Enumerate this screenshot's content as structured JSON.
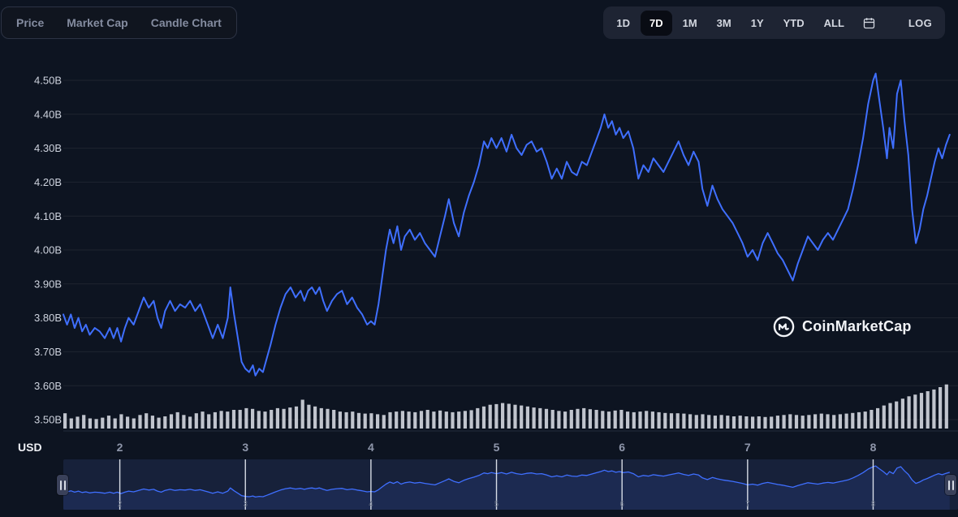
{
  "toolbar": {
    "chart_tabs": [
      {
        "label": "Price"
      },
      {
        "label": "Market Cap"
      },
      {
        "label": "Candle Chart"
      }
    ],
    "ranges": [
      {
        "label": "1D",
        "active": false
      },
      {
        "label": "7D",
        "active": true
      },
      {
        "label": "1M",
        "active": false
      },
      {
        "label": "3M",
        "active": false
      },
      {
        "label": "1Y",
        "active": false
      },
      {
        "label": "YTD",
        "active": false
      },
      {
        "label": "ALL",
        "active": false
      }
    ],
    "log_label": "LOG"
  },
  "watermark": {
    "text": "CoinMarketCap"
  },
  "axis": {
    "currency_label": "USD"
  },
  "colors": {
    "background": "#0d1421",
    "accent_blue": "#3f6fff",
    "grid": "rgba(255,255,255,0.07)",
    "volume_bar": "#d9dde5",
    "navigator_bg": "#17213a",
    "navigator_fill": "rgba(63,111,255,0.12)",
    "tick_line_white": "rgba(235,239,247,0.9)"
  },
  "chart_data": {
    "type": "line",
    "title": "Market Cap (7D)",
    "xlabel": "",
    "ylabel": "USD",
    "y_unit": "B",
    "x_domain": [
      1.55,
      8.65
    ],
    "y_domain": [
      3.5,
      4.5
    ],
    "x_ticks": [
      2,
      3,
      4,
      5,
      6,
      7,
      8
    ],
    "y_ticks": [
      {
        "value": 4.5,
        "label": "4.50B"
      },
      {
        "value": 4.4,
        "label": "4.40B"
      },
      {
        "value": 4.3,
        "label": "4.30B"
      },
      {
        "value": 4.2,
        "label": "4.20B"
      },
      {
        "value": 4.1,
        "label": "4.10B"
      },
      {
        "value": 4.0,
        "label": "4.00B"
      },
      {
        "value": 3.9,
        "label": "3.90B"
      },
      {
        "value": 3.8,
        "label": "3.80B"
      },
      {
        "value": 3.7,
        "label": "3.70B"
      },
      {
        "value": 3.6,
        "label": "3.60B"
      },
      {
        "value": 3.5,
        "label": "3.50B"
      }
    ],
    "series": [
      {
        "name": "Market Cap",
        "color": "#3f6fff",
        "points": [
          [
            1.55,
            3.81
          ],
          [
            1.58,
            3.78
          ],
          [
            1.61,
            3.81
          ],
          [
            1.64,
            3.77
          ],
          [
            1.67,
            3.8
          ],
          [
            1.7,
            3.76
          ],
          [
            1.73,
            3.78
          ],
          [
            1.76,
            3.75
          ],
          [
            1.8,
            3.77
          ],
          [
            1.84,
            3.76
          ],
          [
            1.88,
            3.74
          ],
          [
            1.92,
            3.77
          ],
          [
            1.95,
            3.74
          ],
          [
            1.98,
            3.77
          ],
          [
            2.01,
            3.73
          ],
          [
            2.04,
            3.77
          ],
          [
            2.07,
            3.8
          ],
          [
            2.11,
            3.78
          ],
          [
            2.15,
            3.82
          ],
          [
            2.19,
            3.86
          ],
          [
            2.23,
            3.83
          ],
          [
            2.27,
            3.85
          ],
          [
            2.3,
            3.8
          ],
          [
            2.33,
            3.77
          ],
          [
            2.36,
            3.82
          ],
          [
            2.4,
            3.85
          ],
          [
            2.44,
            3.82
          ],
          [
            2.48,
            3.84
          ],
          [
            2.52,
            3.83
          ],
          [
            2.56,
            3.85
          ],
          [
            2.6,
            3.82
          ],
          [
            2.64,
            3.84
          ],
          [
            2.68,
            3.8
          ],
          [
            2.71,
            3.77
          ],
          [
            2.74,
            3.74
          ],
          [
            2.78,
            3.78
          ],
          [
            2.82,
            3.74
          ],
          [
            2.86,
            3.8
          ],
          [
            2.88,
            3.89
          ],
          [
            2.91,
            3.81
          ],
          [
            2.94,
            3.74
          ],
          [
            2.97,
            3.67
          ],
          [
            3.0,
            3.65
          ],
          [
            3.03,
            3.64
          ],
          [
            3.06,
            3.66
          ],
          [
            3.08,
            3.63
          ],
          [
            3.11,
            3.65
          ],
          [
            3.14,
            3.64
          ],
          [
            3.17,
            3.68
          ],
          [
            3.2,
            3.72
          ],
          [
            3.24,
            3.78
          ],
          [
            3.28,
            3.83
          ],
          [
            3.32,
            3.87
          ],
          [
            3.36,
            3.89
          ],
          [
            3.4,
            3.86
          ],
          [
            3.44,
            3.88
          ],
          [
            3.47,
            3.85
          ],
          [
            3.5,
            3.88
          ],
          [
            3.53,
            3.89
          ],
          [
            3.56,
            3.87
          ],
          [
            3.59,
            3.89
          ],
          [
            3.62,
            3.85
          ],
          [
            3.65,
            3.82
          ],
          [
            3.69,
            3.85
          ],
          [
            3.73,
            3.87
          ],
          [
            3.77,
            3.88
          ],
          [
            3.81,
            3.84
          ],
          [
            3.85,
            3.86
          ],
          [
            3.89,
            3.83
          ],
          [
            3.93,
            3.81
          ],
          [
            3.97,
            3.78
          ],
          [
            4.0,
            3.79
          ],
          [
            4.03,
            3.78
          ],
          [
            4.06,
            3.84
          ],
          [
            4.09,
            3.92
          ],
          [
            4.12,
            4.0
          ],
          [
            4.15,
            4.06
          ],
          [
            4.18,
            4.02
          ],
          [
            4.21,
            4.07
          ],
          [
            4.24,
            4.0
          ],
          [
            4.27,
            4.04
          ],
          [
            4.31,
            4.06
          ],
          [
            4.35,
            4.03
          ],
          [
            4.39,
            4.05
          ],
          [
            4.43,
            4.02
          ],
          [
            4.47,
            4.0
          ],
          [
            4.51,
            3.98
          ],
          [
            4.55,
            4.04
          ],
          [
            4.59,
            4.1
          ],
          [
            4.62,
            4.15
          ],
          [
            4.66,
            4.08
          ],
          [
            4.7,
            4.04
          ],
          [
            4.74,
            4.11
          ],
          [
            4.78,
            4.16
          ],
          [
            4.82,
            4.2
          ],
          [
            4.86,
            4.25
          ],
          [
            4.9,
            4.32
          ],
          [
            4.93,
            4.3
          ],
          [
            4.96,
            4.33
          ],
          [
            5.0,
            4.3
          ],
          [
            5.04,
            4.33
          ],
          [
            5.08,
            4.29
          ],
          [
            5.12,
            4.34
          ],
          [
            5.16,
            4.3
          ],
          [
            5.2,
            4.28
          ],
          [
            5.24,
            4.31
          ],
          [
            5.28,
            4.32
          ],
          [
            5.32,
            4.29
          ],
          [
            5.36,
            4.3
          ],
          [
            5.4,
            4.26
          ],
          [
            5.44,
            4.21
          ],
          [
            5.48,
            4.24
          ],
          [
            5.52,
            4.21
          ],
          [
            5.56,
            4.26
          ],
          [
            5.6,
            4.23
          ],
          [
            5.64,
            4.22
          ],
          [
            5.68,
            4.26
          ],
          [
            5.72,
            4.25
          ],
          [
            5.76,
            4.29
          ],
          [
            5.8,
            4.33
          ],
          [
            5.83,
            4.36
          ],
          [
            5.86,
            4.4
          ],
          [
            5.89,
            4.36
          ],
          [
            5.92,
            4.38
          ],
          [
            5.95,
            4.34
          ],
          [
            5.98,
            4.36
          ],
          [
            6.01,
            4.33
          ],
          [
            6.05,
            4.35
          ],
          [
            6.09,
            4.3
          ],
          [
            6.13,
            4.21
          ],
          [
            6.17,
            4.25
          ],
          [
            6.21,
            4.23
          ],
          [
            6.25,
            4.27
          ],
          [
            6.29,
            4.25
          ],
          [
            6.33,
            4.23
          ],
          [
            6.37,
            4.26
          ],
          [
            6.41,
            4.29
          ],
          [
            6.45,
            4.32
          ],
          [
            6.49,
            4.28
          ],
          [
            6.53,
            4.25
          ],
          [
            6.57,
            4.29
          ],
          [
            6.61,
            4.26
          ],
          [
            6.64,
            4.18
          ],
          [
            6.68,
            4.13
          ],
          [
            6.72,
            4.19
          ],
          [
            6.76,
            4.15
          ],
          [
            6.8,
            4.12
          ],
          [
            6.84,
            4.1
          ],
          [
            6.88,
            4.08
          ],
          [
            6.92,
            4.05
          ],
          [
            6.96,
            4.02
          ],
          [
            7.0,
            3.98
          ],
          [
            7.04,
            4.0
          ],
          [
            7.08,
            3.97
          ],
          [
            7.12,
            4.02
          ],
          [
            7.16,
            4.05
          ],
          [
            7.2,
            4.02
          ],
          [
            7.24,
            3.99
          ],
          [
            7.28,
            3.97
          ],
          [
            7.32,
            3.94
          ],
          [
            7.36,
            3.91
          ],
          [
            7.4,
            3.96
          ],
          [
            7.44,
            4.0
          ],
          [
            7.48,
            4.04
          ],
          [
            7.52,
            4.02
          ],
          [
            7.56,
            4.0
          ],
          [
            7.6,
            4.03
          ],
          [
            7.64,
            4.05
          ],
          [
            7.68,
            4.03
          ],
          [
            7.72,
            4.06
          ],
          [
            7.76,
            4.09
          ],
          [
            7.8,
            4.12
          ],
          [
            7.84,
            4.18
          ],
          [
            7.88,
            4.25
          ],
          [
            7.92,
            4.33
          ],
          [
            7.96,
            4.43
          ],
          [
            8.0,
            4.5
          ],
          [
            8.02,
            4.52
          ],
          [
            8.05,
            4.44
          ],
          [
            8.08,
            4.36
          ],
          [
            8.11,
            4.27
          ],
          [
            8.13,
            4.36
          ],
          [
            8.16,
            4.3
          ],
          [
            8.19,
            4.46
          ],
          [
            8.22,
            4.5
          ],
          [
            8.25,
            4.38
          ],
          [
            8.28,
            4.28
          ],
          [
            8.31,
            4.12
          ],
          [
            8.34,
            4.02
          ],
          [
            8.37,
            4.06
          ],
          [
            8.4,
            4.12
          ],
          [
            8.43,
            4.16
          ],
          [
            8.46,
            4.21
          ],
          [
            8.49,
            4.26
          ],
          [
            8.52,
            4.3
          ],
          [
            8.55,
            4.27
          ],
          [
            8.58,
            4.31
          ],
          [
            8.61,
            4.34
          ]
        ]
      }
    ],
    "volume": {
      "color": "#d9dde5",
      "x_start": 1.55,
      "x_end": 8.62,
      "heights": [
        0.045,
        0.03,
        0.035,
        0.04,
        0.03,
        0.028,
        0.032,
        0.038,
        0.03,
        0.042,
        0.035,
        0.03,
        0.04,
        0.045,
        0.038,
        0.032,
        0.036,
        0.042,
        0.048,
        0.04,
        0.035,
        0.045,
        0.05,
        0.042,
        0.048,
        0.052,
        0.05,
        0.055,
        0.055,
        0.06,
        0.058,
        0.052,
        0.05,
        0.055,
        0.06,
        0.058,
        0.062,
        0.065,
        0.085,
        0.07,
        0.065,
        0.06,
        0.058,
        0.055,
        0.05,
        0.048,
        0.05,
        0.046,
        0.044,
        0.045,
        0.042,
        0.04,
        0.048,
        0.05,
        0.052,
        0.05,
        0.048,
        0.052,
        0.055,
        0.05,
        0.053,
        0.05,
        0.048,
        0.05,
        0.052,
        0.054,
        0.06,
        0.065,
        0.07,
        0.072,
        0.075,
        0.073,
        0.07,
        0.068,
        0.065,
        0.062,
        0.06,
        0.058,
        0.055,
        0.052,
        0.05,
        0.055,
        0.058,
        0.06,
        0.057,
        0.055,
        0.052,
        0.05,
        0.053,
        0.055,
        0.05,
        0.048,
        0.05,
        0.052,
        0.05,
        0.048,
        0.046,
        0.045,
        0.045,
        0.044,
        0.042,
        0.04,
        0.042,
        0.04,
        0.038,
        0.04,
        0.038,
        0.036,
        0.038,
        0.036,
        0.035,
        0.036,
        0.034,
        0.035,
        0.038,
        0.04,
        0.042,
        0.04,
        0.038,
        0.04,
        0.042,
        0.044,
        0.042,
        0.04,
        0.042,
        0.044,
        0.046,
        0.048,
        0.05,
        0.055,
        0.06,
        0.068,
        0.075,
        0.08,
        0.088,
        0.095,
        0.1,
        0.105,
        0.11,
        0.115,
        0.122,
        0.13
      ]
    }
  }
}
